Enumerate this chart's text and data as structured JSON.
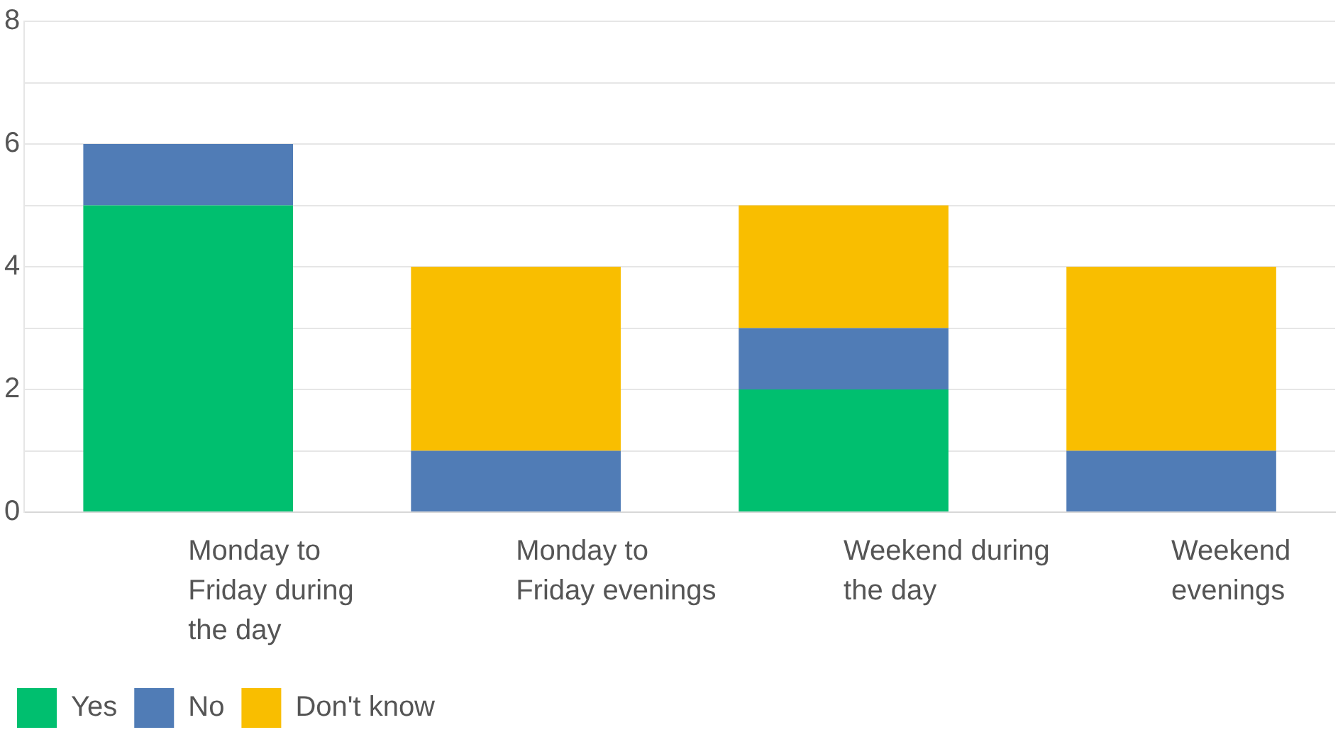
{
  "chart_data": {
    "type": "bar",
    "stacked": true,
    "categories": [
      "Monday to Friday during the day",
      "Monday to Friday evenings",
      "Weekend during the day",
      "Weekend evenings"
    ],
    "series": [
      {
        "name": "Yes",
        "color": "#00bf6f",
        "values": [
          5,
          0,
          2,
          0
        ]
      },
      {
        "name": "No",
        "color": "#507cb6",
        "values": [
          1,
          1,
          1,
          1
        ]
      },
      {
        "name": "Don't know",
        "color": "#f9be00",
        "values": [
          0,
          3,
          2,
          3
        ]
      }
    ],
    "ylim": [
      0,
      8
    ],
    "yticks": [
      0,
      {
        "value": 1,
        "label": null
      },
      2,
      {
        "value": 3,
        "label": null
      },
      4,
      {
        "value": 5,
        "label": null
      },
      6,
      {
        "value": 7,
        "label": null
      },
      8
    ],
    "grid": "y",
    "legend": "bottom left"
  }
}
